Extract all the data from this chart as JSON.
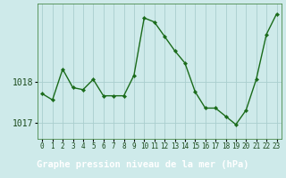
{
  "x": [
    0,
    1,
    2,
    3,
    4,
    5,
    6,
    7,
    8,
    9,
    10,
    11,
    12,
    13,
    14,
    15,
    16,
    17,
    18,
    19,
    20,
    21,
    22,
    23
  ],
  "y": [
    1017.7,
    1017.55,
    1018.3,
    1017.85,
    1017.8,
    1018.05,
    1017.65,
    1017.65,
    1017.65,
    1018.15,
    1019.55,
    1019.45,
    1019.1,
    1018.75,
    1018.45,
    1017.75,
    1017.35,
    1017.35,
    1017.15,
    1016.95,
    1017.3,
    1018.05,
    1019.15,
    1019.65
  ],
  "line_color": "#1a6b1a",
  "marker_color": "#1a6b1a",
  "bg_color": "#ceeaea",
  "grid_color": "#aacece",
  "bottom_bar_color": "#2d6b2d",
  "xlabel": "Graphe pression niveau de la mer (hPa)",
  "yticks": [
    1017,
    1018
  ],
  "ylim": [
    1016.6,
    1019.9
  ],
  "xlim": [
    -0.5,
    23.5
  ],
  "xlabel_fontsize": 7.5,
  "tick_fontsize": 5.5,
  "ytick_fontsize": 7.0,
  "linewidth": 1.0,
  "markersize": 2.2
}
